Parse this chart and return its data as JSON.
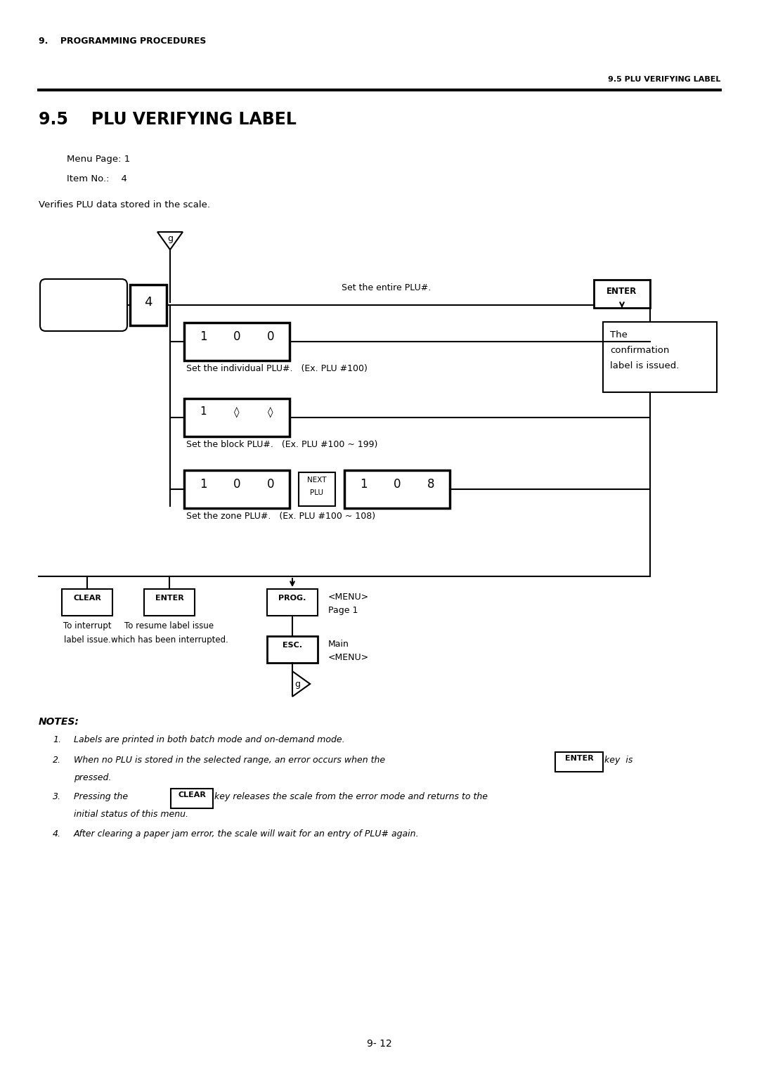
{
  "page_header_left": "9.    PROGRAMMING PROCEDURES",
  "page_header_right": "9.5 PLU VERIFYING LABEL",
  "section_title": "9.5    PLU VERIFYING LABEL",
  "menu_page": "Menu Page: 1",
  "item_no": "Item No.:    4",
  "verifies_text": "Verifies PLU data stored in the scale.",
  "notes_title": "NOTES:",
  "page_number": "9- 12",
  "bg_color": "#ffffff",
  "text_color": "#000000",
  "figw": 10.8,
  "figh": 15.28
}
